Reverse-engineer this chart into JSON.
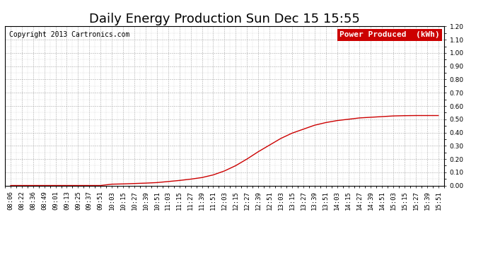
{
  "title": "Daily Energy Production Sun Dec 15 15:55",
  "copyright": "Copyright 2013 Cartronics.com",
  "legend_label": "Power Produced  (kWh)",
  "legend_bg": "#cc0000",
  "legend_text_color": "#ffffff",
  "line_color": "#cc0000",
  "bg_color": "#ffffff",
  "plot_bg_color": "#ffffff",
  "grid_color": "#aaaaaa",
  "ylim": [
    0.0,
    1.2
  ],
  "yticks": [
    0.0,
    0.1,
    0.2,
    0.3,
    0.4,
    0.5,
    0.6,
    0.7,
    0.8,
    0.9,
    1.0,
    1.1,
    1.2
  ],
  "x_labels": [
    "08:06",
    "08:22",
    "08:36",
    "08:49",
    "09:01",
    "09:13",
    "09:25",
    "09:37",
    "09:51",
    "10:03",
    "10:15",
    "10:27",
    "10:39",
    "10:51",
    "11:03",
    "11:15",
    "11:27",
    "11:39",
    "11:51",
    "12:03",
    "12:15",
    "12:27",
    "12:39",
    "12:51",
    "13:03",
    "13:15",
    "13:27",
    "13:39",
    "13:51",
    "14:03",
    "14:15",
    "14:27",
    "14:39",
    "14:51",
    "15:03",
    "15:15",
    "15:27",
    "15:39",
    "15:51"
  ],
  "y_values": [
    0.0,
    0.0,
    0.0,
    0.0,
    0.0,
    0.0,
    0.0,
    0.0,
    0.0,
    0.01,
    0.012,
    0.015,
    0.018,
    0.022,
    0.03,
    0.038,
    0.048,
    0.06,
    0.08,
    0.11,
    0.15,
    0.2,
    0.255,
    0.305,
    0.355,
    0.395,
    0.425,
    0.455,
    0.475,
    0.49,
    0.5,
    0.51,
    0.515,
    0.52,
    0.525,
    0.527,
    0.528,
    0.528,
    0.528
  ],
  "title_fontsize": 13,
  "copyright_fontsize": 7,
  "tick_fontsize": 6.5,
  "legend_fontsize": 8
}
